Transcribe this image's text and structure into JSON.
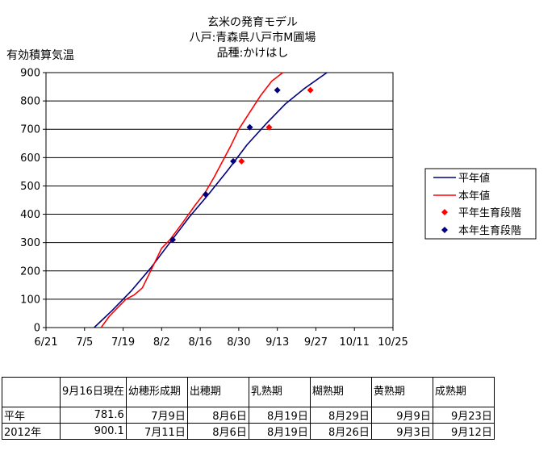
{
  "chart_data": {
    "type": "line",
    "title_lines": [
      "玄米の発育モデル",
      "八戸:青森県八戸市M圃場",
      "品種:かけはし"
    ],
    "ylabel": "有効積算気温",
    "ylim": [
      0,
      900
    ],
    "yticks": [
      "0",
      "100",
      "200",
      "300",
      "400",
      "500",
      "600",
      "700",
      "800",
      "900"
    ],
    "xlim_days": [
      0,
      126
    ],
    "xticks": [
      {
        "label": "6/21",
        "day": 0
      },
      {
        "label": "7/5",
        "day": 14
      },
      {
        "label": "7/19",
        "day": 28
      },
      {
        "label": "8/2",
        "day": 42
      },
      {
        "label": "8/16",
        "day": 56
      },
      {
        "label": "8/30",
        "day": 70
      },
      {
        "label": "9/13",
        "day": 84
      },
      {
        "label": "9/27",
        "day": 98
      },
      {
        "label": "10/11",
        "day": 112
      },
      {
        "label": "10/25",
        "day": 126
      }
    ],
    "grid": "horizontal",
    "legend_position": "right",
    "series": [
      {
        "name": "平年値",
        "kind": "line",
        "color": "#000080",
        "points": [
          [
            17.5,
            0
          ],
          [
            24,
            60
          ],
          [
            31,
            130
          ],
          [
            38,
            210
          ],
          [
            45,
            300
          ],
          [
            52,
            390
          ],
          [
            59,
            470
          ],
          [
            66,
            555
          ],
          [
            73,
            645
          ],
          [
            80,
            720
          ],
          [
            87,
            790
          ],
          [
            94,
            845
          ],
          [
            102,
            900
          ]
        ]
      },
      {
        "name": "本年値",
        "kind": "line",
        "color": "#ff0000",
        "points": [
          [
            20,
            0
          ],
          [
            23,
            40
          ],
          [
            26,
            70
          ],
          [
            29,
            100
          ],
          [
            32,
            115
          ],
          [
            35,
            140
          ],
          [
            38,
            200
          ],
          [
            42,
            280
          ],
          [
            45,
            310
          ],
          [
            50,
            375
          ],
          [
            54,
            430
          ],
          [
            58,
            480
          ],
          [
            61,
            530
          ],
          [
            64,
            585
          ],
          [
            67,
            640
          ],
          [
            70,
            700
          ],
          [
            74,
            760
          ],
          [
            78,
            820
          ],
          [
            82,
            870
          ],
          [
            86,
            900
          ]
        ]
      },
      {
        "name": "平年生育段階",
        "kind": "points",
        "color": "#ff0000",
        "points": [
          [
            46,
            310
          ],
          [
            58,
            470
          ],
          [
            71,
            587
          ],
          [
            81,
            707
          ],
          [
            96,
            838
          ]
        ]
      },
      {
        "name": "本年生育段階",
        "kind": "points",
        "color": "#000080",
        "points": [
          [
            46,
            310
          ],
          [
            58,
            470
          ],
          [
            68,
            587
          ],
          [
            74,
            707
          ],
          [
            84,
            838
          ]
        ]
      }
    ]
  },
  "table": {
    "header": [
      "9月16日現在",
      "幼穂形成期",
      "出穂期",
      "乳熟期",
      "糊熟期",
      "黄熟期",
      "成熟期"
    ],
    "rows": [
      {
        "label": "平年",
        "values": [
          "781.6",
          "7月9日",
          "8月6日",
          "8月19日",
          "8月29日",
          "9月9日",
          "9月23日"
        ]
      },
      {
        "label": "2012年",
        "values": [
          "900.1",
          "7月11日",
          "8月6日",
          "8月19日",
          "8月26日",
          "9月3日",
          "9月12日"
        ]
      }
    ]
  }
}
